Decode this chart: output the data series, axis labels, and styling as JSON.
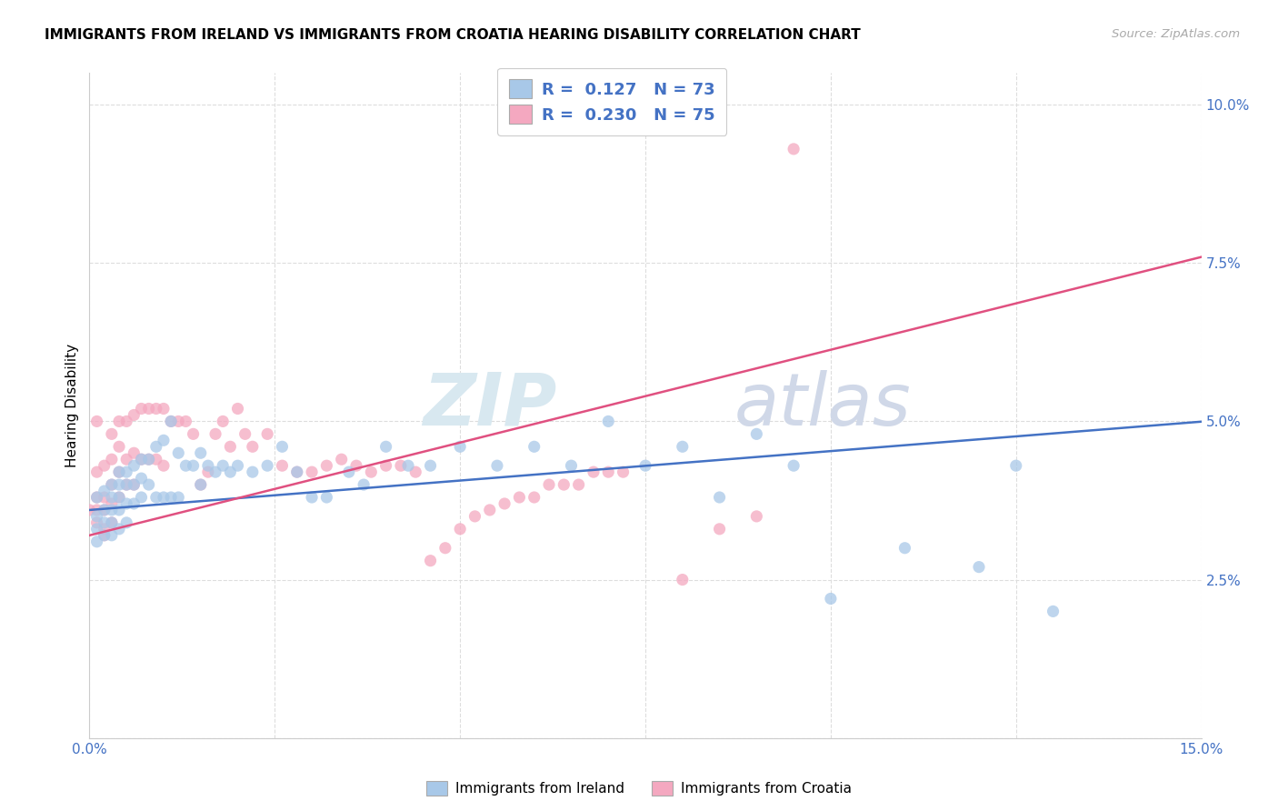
{
  "title": "IMMIGRANTS FROM IRELAND VS IMMIGRANTS FROM CROATIA HEARING DISABILITY CORRELATION CHART",
  "source": "Source: ZipAtlas.com",
  "ylabel": "Hearing Disability",
  "xlim": [
    0.0,
    0.15
  ],
  "ylim": [
    0.0,
    0.105
  ],
  "xticks": [
    0.0,
    0.025,
    0.05,
    0.075,
    0.1,
    0.125,
    0.15
  ],
  "xticklabels": [
    "0.0%",
    "",
    "",
    "",
    "",
    "",
    "15.0%"
  ],
  "yticks": [
    0.0,
    0.025,
    0.05,
    0.075,
    0.1
  ],
  "yticklabels": [
    "",
    "2.5%",
    "5.0%",
    "7.5%",
    "10.0%"
  ],
  "ireland_color": "#a8c8e8",
  "croatia_color": "#f4a8c0",
  "ireland_line_color": "#4472c4",
  "croatia_line_color": "#e05080",
  "ireland_R": 0.127,
  "ireland_N": 73,
  "croatia_R": 0.23,
  "croatia_N": 75,
  "ireland_intercept": 0.036,
  "ireland_slope": 0.093,
  "croatia_intercept": 0.032,
  "croatia_slope": 0.293,
  "ireland_x": [
    0.001,
    0.001,
    0.001,
    0.001,
    0.002,
    0.002,
    0.002,
    0.002,
    0.003,
    0.003,
    0.003,
    0.003,
    0.003,
    0.004,
    0.004,
    0.004,
    0.004,
    0.004,
    0.005,
    0.005,
    0.005,
    0.005,
    0.006,
    0.006,
    0.006,
    0.007,
    0.007,
    0.007,
    0.008,
    0.008,
    0.009,
    0.009,
    0.01,
    0.01,
    0.011,
    0.011,
    0.012,
    0.012,
    0.013,
    0.014,
    0.015,
    0.015,
    0.016,
    0.017,
    0.018,
    0.019,
    0.02,
    0.022,
    0.024,
    0.026,
    0.028,
    0.03,
    0.032,
    0.035,
    0.037,
    0.04,
    0.043,
    0.046,
    0.05,
    0.055,
    0.06,
    0.065,
    0.07,
    0.075,
    0.08,
    0.085,
    0.09,
    0.095,
    0.1,
    0.11,
    0.12,
    0.125,
    0.13
  ],
  "ireland_y": [
    0.038,
    0.035,
    0.033,
    0.031,
    0.039,
    0.036,
    0.034,
    0.032,
    0.04,
    0.038,
    0.036,
    0.034,
    0.032,
    0.042,
    0.04,
    0.038,
    0.036,
    0.033,
    0.042,
    0.04,
    0.037,
    0.034,
    0.043,
    0.04,
    0.037,
    0.044,
    0.041,
    0.038,
    0.044,
    0.04,
    0.046,
    0.038,
    0.047,
    0.038,
    0.05,
    0.038,
    0.045,
    0.038,
    0.043,
    0.043,
    0.045,
    0.04,
    0.043,
    0.042,
    0.043,
    0.042,
    0.043,
    0.042,
    0.043,
    0.046,
    0.042,
    0.038,
    0.038,
    0.042,
    0.04,
    0.046,
    0.043,
    0.043,
    0.046,
    0.043,
    0.046,
    0.043,
    0.05,
    0.043,
    0.046,
    0.038,
    0.048,
    0.043,
    0.022,
    0.03,
    0.027,
    0.043,
    0.02
  ],
  "croatia_x": [
    0.0,
    0.001,
    0.001,
    0.001,
    0.001,
    0.001,
    0.002,
    0.002,
    0.002,
    0.002,
    0.002,
    0.003,
    0.003,
    0.003,
    0.003,
    0.003,
    0.004,
    0.004,
    0.004,
    0.004,
    0.005,
    0.005,
    0.005,
    0.006,
    0.006,
    0.006,
    0.007,
    0.007,
    0.008,
    0.008,
    0.009,
    0.009,
    0.01,
    0.01,
    0.011,
    0.012,
    0.013,
    0.014,
    0.015,
    0.016,
    0.017,
    0.018,
    0.019,
    0.02,
    0.021,
    0.022,
    0.024,
    0.026,
    0.028,
    0.03,
    0.032,
    0.034,
    0.036,
    0.038,
    0.04,
    0.042,
    0.044,
    0.046,
    0.048,
    0.05,
    0.052,
    0.054,
    0.056,
    0.058,
    0.06,
    0.062,
    0.064,
    0.066,
    0.068,
    0.07,
    0.072,
    0.08,
    0.085,
    0.09,
    0.095
  ],
  "croatia_y": [
    0.036,
    0.05,
    0.042,
    0.038,
    0.036,
    0.034,
    0.043,
    0.038,
    0.036,
    0.033,
    0.032,
    0.048,
    0.044,
    0.04,
    0.037,
    0.034,
    0.05,
    0.046,
    0.042,
    0.038,
    0.05,
    0.044,
    0.04,
    0.051,
    0.045,
    0.04,
    0.052,
    0.044,
    0.052,
    0.044,
    0.052,
    0.044,
    0.052,
    0.043,
    0.05,
    0.05,
    0.05,
    0.048,
    0.04,
    0.042,
    0.048,
    0.05,
    0.046,
    0.052,
    0.048,
    0.046,
    0.048,
    0.043,
    0.042,
    0.042,
    0.043,
    0.044,
    0.043,
    0.042,
    0.043,
    0.043,
    0.042,
    0.028,
    0.03,
    0.033,
    0.035,
    0.036,
    0.037,
    0.038,
    0.038,
    0.04,
    0.04,
    0.04,
    0.042,
    0.042,
    0.042,
    0.025,
    0.033,
    0.035,
    0.093
  ],
  "background_color": "#ffffff",
  "grid_color": "#dddddd",
  "watermark_zip": "ZIP",
  "watermark_atlas": "atlas",
  "legend_ireland_label": "Immigrants from Ireland",
  "legend_croatia_label": "Immigrants from Croatia"
}
